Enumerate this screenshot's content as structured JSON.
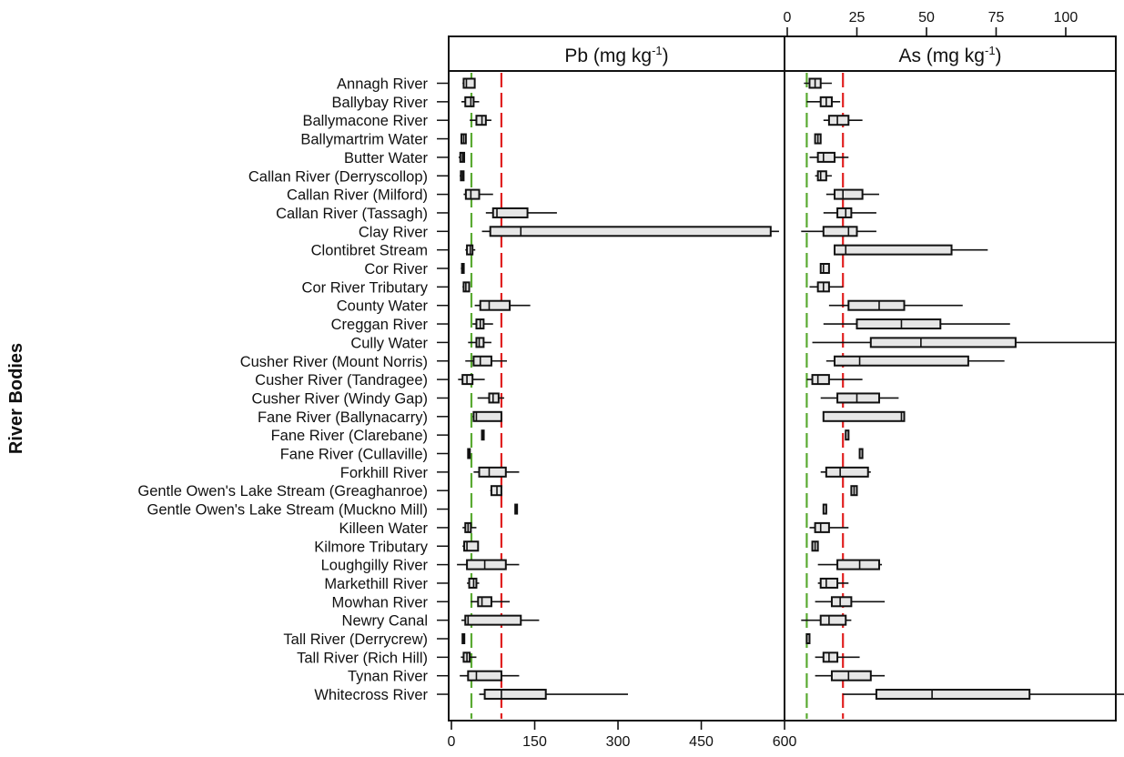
{
  "chart_data": {
    "type": "boxplot",
    "title": "",
    "ylabel": "River Bodies",
    "categories": [
      "Annagh River",
      "Ballybay River",
      "Ballymacone River",
      "Ballymartrim Water",
      "Butter Water",
      "Callan River (Derryscollop)",
      "Callan River (Milford)",
      "Callan River (Tassagh)",
      "Clay River",
      "Clontibret Stream",
      "Cor River",
      "Cor River Tributary",
      "County Water",
      "Creggan River",
      "Cully Water",
      "Cusher River (Mount Norris)",
      "Cusher River (Tandragee)",
      "Cusher River (Windy Gap)",
      "Fane River (Ballynacarry)",
      "Fane River (Clarebane)",
      "Fane River (Cullaville)",
      "Forkhill River",
      "Gentle Owen's Lake Stream (Greaghanroe)",
      "Gentle Owen's Lake Stream (Muckno Mill)",
      "Killeen Water",
      "Kilmore Tributary",
      "Loughgilly River",
      "Markethill River",
      "Mowhan River",
      "Newry Canal",
      "Tall River (Derrycrew)",
      "Tall River (Rich Hill)",
      "Tynan River",
      "Whitecross River"
    ],
    "panels": [
      {
        "name": "Pb",
        "title_main": "Pb (mg kg",
        "title_sup": "-1",
        "title_end": ")",
        "axis_position": "bottom",
        "xlim": [
          0,
          595
        ],
        "ticks": [
          0,
          150,
          300,
          450,
          600
        ],
        "tick_labels": [
          "0",
          "150",
          "300",
          "450",
          "600"
        ],
        "reference_lines": [
          {
            "value": 36,
            "color": "#5aaa32",
            "style": "dashed"
          },
          {
            "value": 90,
            "color": "#e02020",
            "style": "dashed"
          }
        ],
        "boxes": [
          {
            "min": 20,
            "q1": 22,
            "median": 27,
            "q3": 42,
            "max": 42
          },
          {
            "min": 18,
            "q1": 25,
            "median": 35,
            "q3": 40,
            "max": 50
          },
          {
            "min": 33,
            "q1": 45,
            "median": 55,
            "q3": 62,
            "max": 72
          },
          {
            "min": 18,
            "q1": 18,
            "median": 22,
            "q3": 26,
            "max": 26
          },
          {
            "min": 13,
            "q1": 16,
            "median": 20,
            "q3": 23,
            "max": 23
          },
          {
            "min": 15,
            "q1": 17,
            "median": 20,
            "q3": 22,
            "max": 22
          },
          {
            "min": 22,
            "q1": 26,
            "median": 35,
            "q3": 50,
            "max": 75
          },
          {
            "min": 62,
            "q1": 75,
            "median": 82,
            "q3": 137,
            "max": 190
          },
          {
            "min": 55,
            "q1": 70,
            "median": 125,
            "q3": 575,
            "max": 590
          },
          {
            "min": 25,
            "q1": 28,
            "median": 34,
            "q3": 38,
            "max": 43
          },
          {
            "min": 17,
            "q1": 19,
            "median": 21,
            "q3": 22,
            "max": 22
          },
          {
            "min": 20,
            "q1": 22,
            "median": 26,
            "q3": 32,
            "max": 33
          },
          {
            "min": 42,
            "q1": 52,
            "median": 68,
            "q3": 105,
            "max": 142
          },
          {
            "min": 38,
            "q1": 45,
            "median": 52,
            "q3": 58,
            "max": 75
          },
          {
            "min": 30,
            "q1": 45,
            "median": 50,
            "q3": 58,
            "max": 72
          },
          {
            "min": 25,
            "q1": 40,
            "median": 52,
            "q3": 72,
            "max": 100
          },
          {
            "min": 12,
            "q1": 20,
            "median": 28,
            "q3": 38,
            "max": 60
          },
          {
            "min": 47,
            "q1": 68,
            "median": 75,
            "q3": 85,
            "max": 95
          },
          {
            "min": 38,
            "q1": 40,
            "median": 45,
            "q3": 90,
            "max": 90
          },
          {
            "min": 55,
            "q1": 55,
            "median": 55,
            "q3": 56,
            "max": 56
          },
          {
            "min": 30,
            "q1": 30,
            "median": 31,
            "q3": 32,
            "max": 32
          },
          {
            "min": 40,
            "q1": 50,
            "median": 68,
            "q3": 98,
            "max": 122
          },
          {
            "min": 70,
            "q1": 72,
            "median": 82,
            "q3": 90,
            "max": 90
          },
          {
            "min": 115,
            "q1": 115,
            "median": 116,
            "q3": 117,
            "max": 117
          },
          {
            "min": 20,
            "q1": 25,
            "median": 30,
            "q3": 35,
            "max": 45
          },
          {
            "min": 20,
            "q1": 23,
            "median": 28,
            "q3": 48,
            "max": 48
          },
          {
            "min": 10,
            "q1": 28,
            "median": 60,
            "q3": 98,
            "max": 122
          },
          {
            "min": 28,
            "q1": 32,
            "median": 40,
            "q3": 45,
            "max": 50
          },
          {
            "min": 35,
            "q1": 48,
            "median": 55,
            "q3": 72,
            "max": 105
          },
          {
            "min": 18,
            "q1": 25,
            "median": 30,
            "q3": 125,
            "max": 158
          },
          {
            "min": 20,
            "q1": 20,
            "median": 21,
            "q3": 22,
            "max": 22
          },
          {
            "min": 17,
            "q1": 22,
            "median": 28,
            "q3": 33,
            "max": 45
          },
          {
            "min": 15,
            "q1": 30,
            "median": 45,
            "q3": 90,
            "max": 122
          },
          {
            "min": 50,
            "q1": 60,
            "median": 90,
            "q3": 170,
            "max": 318
          }
        ]
      },
      {
        "name": "As",
        "title_main": "As (mg kg",
        "title_sup": "-1",
        "title_end": ")",
        "axis_position": "top",
        "xlim": [
          0,
          117
        ],
        "ticks": [
          0,
          25,
          50,
          75,
          100
        ],
        "tick_labels": [
          "0",
          "25",
          "50",
          "75",
          "100"
        ],
        "reference_lines": [
          {
            "value": 7,
            "color": "#5aaa32",
            "style": "dashed"
          },
          {
            "value": 20,
            "color": "#e02020",
            "style": "dashed"
          }
        ],
        "boxes": [
          {
            "min": 6,
            "q1": 8,
            "median": 10,
            "q3": 12,
            "max": 16
          },
          {
            "min": 7,
            "q1": 12,
            "median": 14,
            "q3": 16,
            "max": 19
          },
          {
            "min": 13,
            "q1": 15,
            "median": 18,
            "q3": 22,
            "max": 27
          },
          {
            "min": 10,
            "q1": 10,
            "median": 11,
            "q3": 12,
            "max": 12
          },
          {
            "min": 8,
            "q1": 11,
            "median": 13,
            "q3": 17,
            "max": 22
          },
          {
            "min": 10,
            "q1": 11,
            "median": 12,
            "q3": 14,
            "max": 16
          },
          {
            "min": 14,
            "q1": 17,
            "median": 20,
            "q3": 27,
            "max": 33
          },
          {
            "min": 13,
            "q1": 18,
            "median": 21,
            "q3": 23,
            "max": 32
          },
          {
            "min": 5,
            "q1": 13,
            "median": 22,
            "q3": 25,
            "max": 32
          },
          {
            "min": 17,
            "q1": 17,
            "median": 21,
            "q3": 59,
            "max": 72
          },
          {
            "min": 12,
            "q1": 12,
            "median": 13,
            "q3": 15,
            "max": 15
          },
          {
            "min": 8,
            "q1": 11,
            "median": 13,
            "q3": 15,
            "max": 20
          },
          {
            "min": 15,
            "q1": 22,
            "median": 33,
            "q3": 42,
            "max": 63
          },
          {
            "min": 13,
            "q1": 25,
            "median": 41,
            "q3": 55,
            "max": 80
          },
          {
            "min": 9,
            "q1": 30,
            "median": 48,
            "q3": 82,
            "max": 118
          },
          {
            "min": 14,
            "q1": 17,
            "median": 26,
            "q3": 65,
            "max": 78
          },
          {
            "min": 7,
            "q1": 9,
            "median": 11,
            "q3": 15,
            "max": 27
          },
          {
            "min": 12,
            "q1": 18,
            "median": 25,
            "q3": 33,
            "max": 40
          },
          {
            "min": 13,
            "q1": 13,
            "median": 41,
            "q3": 42,
            "max": 42
          },
          {
            "min": 21,
            "q1": 21,
            "median": 22,
            "q3": 22,
            "max": 22
          },
          {
            "min": 26,
            "q1": 26,
            "median": 27,
            "q3": 27,
            "max": 27
          },
          {
            "min": 12,
            "q1": 14,
            "median": 19,
            "q3": 29,
            "max": 30
          },
          {
            "min": 23,
            "q1": 23,
            "median": 24,
            "q3": 25,
            "max": 25
          },
          {
            "min": 13,
            "q1": 13,
            "median": 14,
            "q3": 14,
            "max": 14
          },
          {
            "min": 8,
            "q1": 10,
            "median": 12,
            "q3": 15,
            "max": 22
          },
          {
            "min": 9,
            "q1": 9,
            "median": 10,
            "q3": 11,
            "max": 11
          },
          {
            "min": 11,
            "q1": 18,
            "median": 26,
            "q3": 33,
            "max": 34
          },
          {
            "min": 11,
            "q1": 12,
            "median": 14,
            "q3": 18,
            "max": 22
          },
          {
            "min": 10,
            "q1": 16,
            "median": 19,
            "q3": 23,
            "max": 35
          },
          {
            "min": 5,
            "q1": 12,
            "median": 15,
            "q3": 21,
            "max": 23
          },
          {
            "min": 7,
            "q1": 7,
            "median": 7,
            "q3": 8,
            "max": 8
          },
          {
            "min": 10,
            "q1": 13,
            "median": 15,
            "q3": 18,
            "max": 26
          },
          {
            "min": 10,
            "q1": 16,
            "median": 22,
            "q3": 30,
            "max": 35
          },
          {
            "min": 20,
            "q1": 32,
            "median": 52,
            "q3": 87,
            "max": 138
          }
        ]
      }
    ],
    "grid": false,
    "legend": "none"
  },
  "colors": {
    "box_fill": "#e6e6e6",
    "stroke": "#111111",
    "green_line": "#5aaa32",
    "red_line": "#e02020"
  }
}
